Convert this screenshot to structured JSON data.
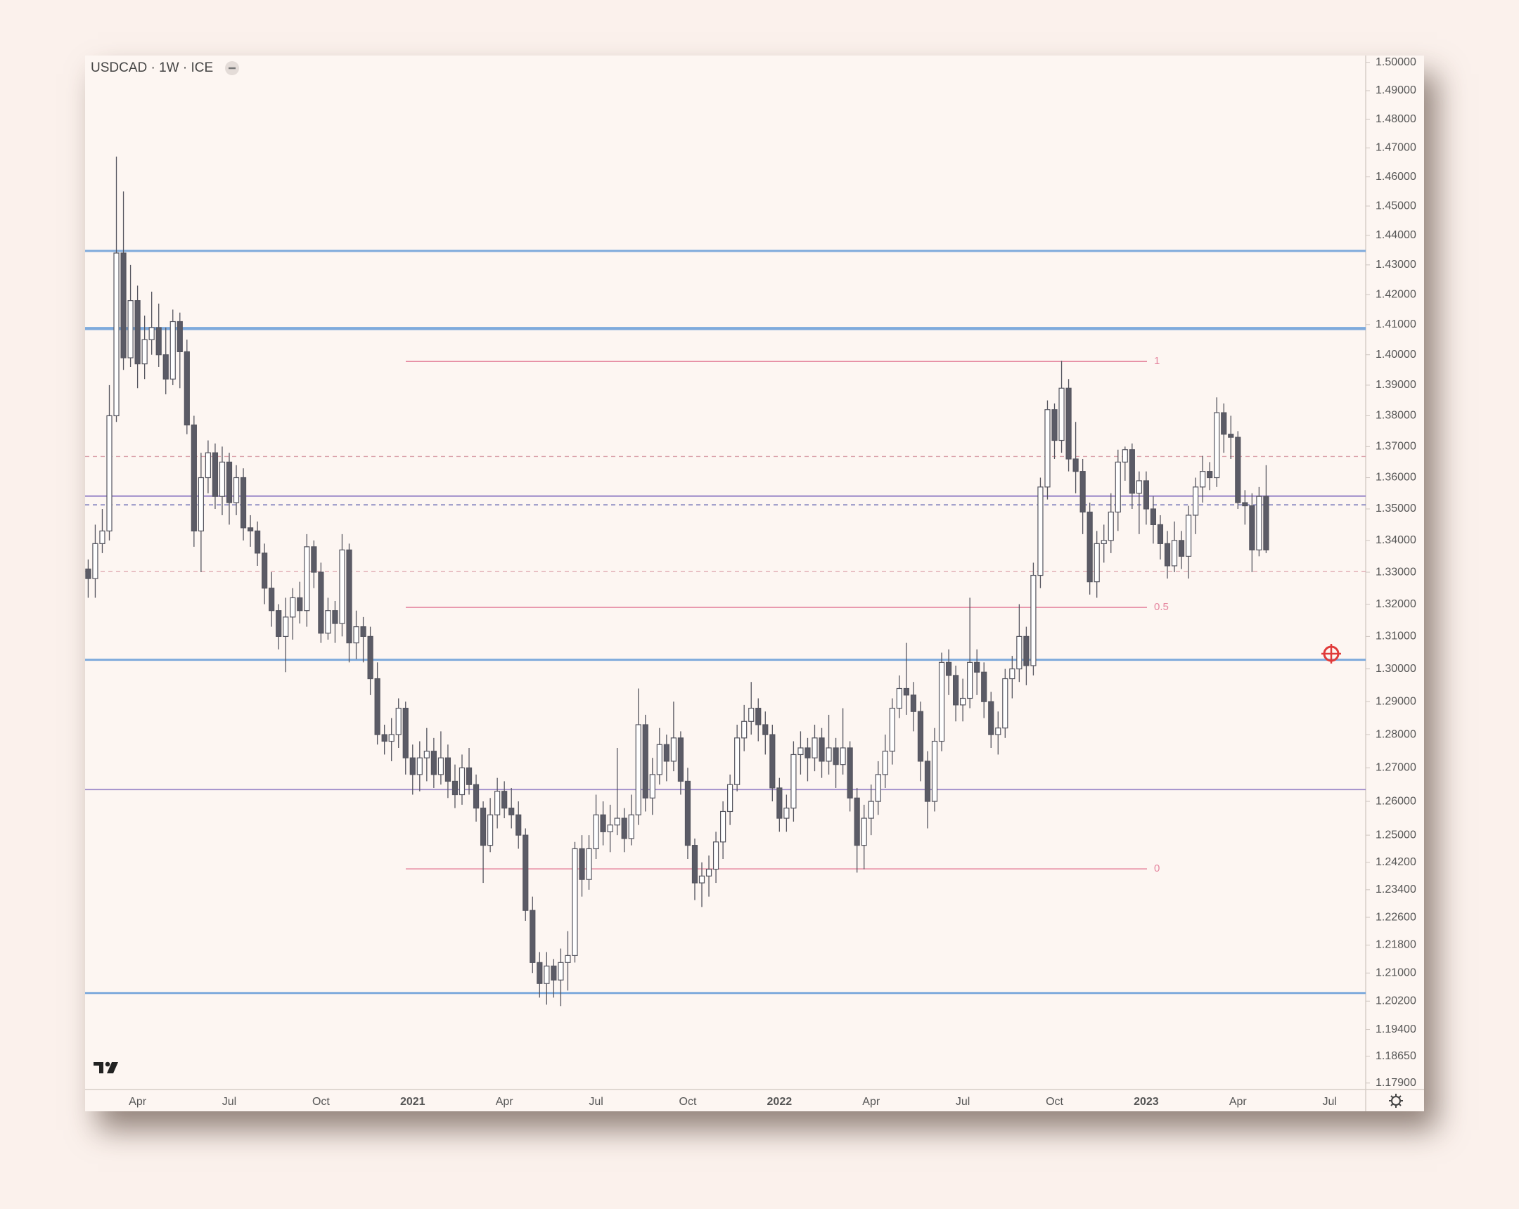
{
  "chart_data": {
    "type": "candlestick",
    "title": "USDCAD · 1W · ICE",
    "log_scale": true,
    "grid": false,
    "ylim": [
      1.1772,
      1.5024
    ],
    "yticks": [
      {
        "value": 1.5,
        "label": "1.50000"
      },
      {
        "value": 1.49,
        "label": "1.49000"
      },
      {
        "value": 1.48,
        "label": "1.48000"
      },
      {
        "value": 1.47,
        "label": "1.47000"
      },
      {
        "value": 1.46,
        "label": "1.46000"
      },
      {
        "value": 1.45,
        "label": "1.45000"
      },
      {
        "value": 1.44,
        "label": "1.44000"
      },
      {
        "value": 1.43,
        "label": "1.43000"
      },
      {
        "value": 1.42,
        "label": "1.42000"
      },
      {
        "value": 1.41,
        "label": "1.41000"
      },
      {
        "value": 1.4,
        "label": "1.40000"
      },
      {
        "value": 1.39,
        "label": "1.39000"
      },
      {
        "value": 1.38,
        "label": "1.38000"
      },
      {
        "value": 1.37,
        "label": "1.37000"
      },
      {
        "value": 1.36,
        "label": "1.36000"
      },
      {
        "value": 1.35,
        "label": "1.35000"
      },
      {
        "value": 1.34,
        "label": "1.34000"
      },
      {
        "value": 1.33,
        "label": "1.33000"
      },
      {
        "value": 1.32,
        "label": "1.32000"
      },
      {
        "value": 1.31,
        "label": "1.31000"
      },
      {
        "value": 1.3,
        "label": "1.30000"
      },
      {
        "value": 1.29,
        "label": "1.29000"
      },
      {
        "value": 1.28,
        "label": "1.28000"
      },
      {
        "value": 1.27,
        "label": "1.27000"
      },
      {
        "value": 1.26,
        "label": "1.26000"
      },
      {
        "value": 1.25,
        "label": "1.25000"
      },
      {
        "value": 1.242,
        "label": "1.24200"
      },
      {
        "value": 1.234,
        "label": "1.23400"
      },
      {
        "value": 1.226,
        "label": "1.22600"
      },
      {
        "value": 1.218,
        "label": "1.21800"
      },
      {
        "value": 1.21,
        "label": "1.21000"
      },
      {
        "value": 1.202,
        "label": "1.20200"
      },
      {
        "value": 1.194,
        "label": "1.19400"
      },
      {
        "value": 1.1865,
        "label": "1.18650"
      },
      {
        "value": 1.179,
        "label": "1.17900"
      }
    ],
    "xticks": [
      "Apr",
      "Jul",
      "Oct",
      "2021",
      "Apr",
      "Jul",
      "Oct",
      "2022",
      "Apr",
      "Jul",
      "Oct",
      "2023",
      "Apr",
      "Jul"
    ],
    "up_color": "#ffffff",
    "down_color": "#5b5b66",
    "wick_color": "#55555f",
    "candles": {
      "open": [
        1.331,
        1.328,
        1.339,
        1.343,
        1.38,
        1.434,
        1.399,
        1.418,
        1.397,
        1.405,
        1.409,
        1.4,
        1.392,
        1.411,
        1.401,
        1.377,
        1.343,
        1.36,
        1.368,
        1.354,
        1.365,
        1.352,
        1.36,
        1.344,
        1.343,
        1.336,
        1.325,
        1.318,
        1.31,
        1.316,
        1.322,
        1.318,
        1.338,
        1.33,
        1.311,
        1.318,
        1.314,
        1.337,
        1.308,
        1.313,
        1.31,
        1.297,
        1.28,
        1.278,
        1.28,
        1.288,
        1.273,
        1.268,
        1.273,
        1.275,
        1.268,
        1.273,
        1.266,
        1.262,
        1.27,
        1.265,
        1.258,
        1.247,
        1.256,
        1.263,
        1.258,
        1.256,
        1.25,
        1.228,
        1.213,
        1.207,
        1.212,
        1.208,
        1.213,
        1.215,
        1.246,
        1.237,
        1.246,
        1.256,
        1.251,
        1.253,
        1.255,
        1.249,
        1.256,
        1.283,
        1.261,
        1.268,
        1.277,
        1.272,
        1.279,
        1.266,
        1.247,
        1.236,
        1.238,
        1.24,
        1.248,
        1.257,
        1.265,
        1.279,
        1.284,
        1.288,
        1.283,
        1.28,
        1.264,
        1.255,
        1.258,
        1.274,
        1.276,
        1.273,
        1.279,
        1.272,
        1.276,
        1.271,
        1.276,
        1.261,
        1.247,
        1.255,
        1.26,
        1.268,
        1.275,
        1.288,
        1.294,
        1.292,
        1.287,
        1.272,
        1.26,
        1.278,
        1.302,
        1.298,
        1.289,
        1.291,
        1.302,
        1.299,
        1.29,
        1.28,
        1.282,
        1.297,
        1.3,
        1.31,
        1.301,
        1.329,
        1.357,
        1.382,
        1.372,
        1.389,
        1.366,
        1.362,
        1.349,
        1.327,
        1.339,
        1.34,
        1.349,
        1.365,
        1.369,
        1.355,
        1.359,
        1.35,
        1.345,
        1.339,
        1.332,
        1.34,
        1.335,
        1.348,
        1.357,
        1.362,
        1.36,
        1.381,
        1.374,
        1.373,
        1.352,
        1.351,
        1.337,
        1.354
      ],
      "high": [
        1.334,
        1.345,
        1.35,
        1.39,
        1.467,
        1.455,
        1.43,
        1.423,
        1.413,
        1.421,
        1.417,
        1.409,
        1.415,
        1.414,
        1.405,
        1.38,
        1.368,
        1.372,
        1.371,
        1.37,
        1.368,
        1.364,
        1.363,
        1.348,
        1.346,
        1.339,
        1.33,
        1.32,
        1.322,
        1.325,
        1.327,
        1.342,
        1.34,
        1.333,
        1.322,
        1.321,
        1.342,
        1.339,
        1.318,
        1.316,
        1.313,
        1.302,
        1.283,
        1.285,
        1.291,
        1.29,
        1.277,
        1.278,
        1.282,
        1.279,
        1.281,
        1.277,
        1.271,
        1.274,
        1.276,
        1.268,
        1.26,
        1.261,
        1.267,
        1.266,
        1.264,
        1.26,
        1.252,
        1.232,
        1.216,
        1.216,
        1.214,
        1.217,
        1.222,
        1.248,
        1.25,
        1.25,
        1.262,
        1.26,
        1.259,
        1.276,
        1.258,
        1.262,
        1.294,
        1.286,
        1.273,
        1.282,
        1.28,
        1.29,
        1.281,
        1.27,
        1.249,
        1.242,
        1.244,
        1.251,
        1.26,
        1.268,
        1.283,
        1.289,
        1.296,
        1.291,
        1.287,
        1.283,
        1.267,
        1.262,
        1.278,
        1.281,
        1.279,
        1.283,
        1.282,
        1.286,
        1.279,
        1.288,
        1.278,
        1.264,
        1.259,
        1.265,
        1.272,
        1.28,
        1.291,
        1.298,
        1.308,
        1.296,
        1.29,
        1.275,
        1.282,
        1.305,
        1.306,
        1.301,
        1.297,
        1.322,
        1.306,
        1.302,
        1.293,
        1.287,
        1.3,
        1.304,
        1.32,
        1.313,
        1.333,
        1.36,
        1.385,
        1.384,
        1.398,
        1.392,
        1.378,
        1.366,
        1.352,
        1.343,
        1.345,
        1.355,
        1.369,
        1.37,
        1.371,
        1.362,
        1.362,
        1.354,
        1.348,
        1.343,
        1.346,
        1.343,
        1.351,
        1.36,
        1.367,
        1.365,
        1.386,
        1.384,
        1.38,
        1.375,
        1.356,
        1.355,
        1.357,
        1.364
      ],
      "low": [
        1.322,
        1.322,
        1.336,
        1.34,
        1.378,
        1.395,
        1.396,
        1.389,
        1.392,
        1.4,
        1.396,
        1.387,
        1.39,
        1.389,
        1.374,
        1.338,
        1.33,
        1.355,
        1.35,
        1.348,
        1.345,
        1.348,
        1.34,
        1.338,
        1.332,
        1.32,
        1.313,
        1.306,
        1.299,
        1.309,
        1.314,
        1.313,
        1.325,
        1.308,
        1.309,
        1.308,
        1.31,
        1.302,
        1.303,
        1.302,
        1.292,
        1.277,
        1.274,
        1.272,
        1.276,
        1.268,
        1.262,
        1.263,
        1.266,
        1.264,
        1.265,
        1.261,
        1.258,
        1.259,
        1.262,
        1.254,
        1.236,
        1.245,
        1.252,
        1.255,
        1.252,
        1.246,
        1.225,
        1.21,
        1.203,
        1.201,
        1.203,
        1.2006,
        1.205,
        1.213,
        1.232,
        1.234,
        1.243,
        1.247,
        1.245,
        1.25,
        1.245,
        1.247,
        1.253,
        1.257,
        1.256,
        1.265,
        1.266,
        1.269,
        1.262,
        1.243,
        1.231,
        1.229,
        1.232,
        1.236,
        1.243,
        1.253,
        1.263,
        1.275,
        1.28,
        1.278,
        1.274,
        1.26,
        1.251,
        1.251,
        1.254,
        1.268,
        1.266,
        1.269,
        1.267,
        1.268,
        1.264,
        1.268,
        1.257,
        1.239,
        1.24,
        1.25,
        1.256,
        1.264,
        1.271,
        1.285,
        1.286,
        1.281,
        1.266,
        1.252,
        1.257,
        1.275,
        1.292,
        1.284,
        1.284,
        1.288,
        1.292,
        1.285,
        1.276,
        1.274,
        1.279,
        1.291,
        1.296,
        1.295,
        1.298,
        1.325,
        1.353,
        1.366,
        1.368,
        1.362,
        1.355,
        1.342,
        1.323,
        1.322,
        1.333,
        1.336,
        1.343,
        1.359,
        1.35,
        1.342,
        1.345,
        1.339,
        1.334,
        1.328,
        1.33,
        1.331,
        1.328,
        1.342,
        1.352,
        1.356,
        1.357,
        1.368,
        1.366,
        1.35,
        1.345,
        1.33,
        1.335,
        1.336
      ],
      "close": [
        1.328,
        1.339,
        1.343,
        1.38,
        1.434,
        1.399,
        1.418,
        1.397,
        1.405,
        1.409,
        1.4,
        1.392,
        1.411,
        1.401,
        1.377,
        1.343,
        1.36,
        1.368,
        1.354,
        1.365,
        1.352,
        1.36,
        1.344,
        1.343,
        1.336,
        1.325,
        1.318,
        1.31,
        1.316,
        1.322,
        1.318,
        1.338,
        1.33,
        1.311,
        1.318,
        1.314,
        1.337,
        1.308,
        1.313,
        1.31,
        1.297,
        1.28,
        1.278,
        1.28,
        1.288,
        1.273,
        1.268,
        1.273,
        1.275,
        1.268,
        1.273,
        1.266,
        1.262,
        1.27,
        1.265,
        1.258,
        1.247,
        1.256,
        1.263,
        1.258,
        1.256,
        1.25,
        1.228,
        1.213,
        1.207,
        1.212,
        1.208,
        1.213,
        1.215,
        1.246,
        1.237,
        1.246,
        1.256,
        1.251,
        1.253,
        1.255,
        1.249,
        1.256,
        1.283,
        1.261,
        1.268,
        1.277,
        1.272,
        1.279,
        1.266,
        1.247,
        1.236,
        1.238,
        1.24,
        1.248,
        1.257,
        1.265,
        1.279,
        1.284,
        1.288,
        1.283,
        1.28,
        1.264,
        1.255,
        1.258,
        1.274,
        1.276,
        1.273,
        1.279,
        1.272,
        1.276,
        1.271,
        1.276,
        1.261,
        1.247,
        1.255,
        1.26,
        1.268,
        1.275,
        1.288,
        1.294,
        1.292,
        1.287,
        1.272,
        1.26,
        1.278,
        1.302,
        1.298,
        1.289,
        1.291,
        1.302,
        1.299,
        1.29,
        1.28,
        1.282,
        1.297,
        1.3,
        1.31,
        1.301,
        1.329,
        1.357,
        1.382,
        1.372,
        1.389,
        1.366,
        1.362,
        1.349,
        1.327,
        1.339,
        1.34,
        1.349,
        1.365,
        1.369,
        1.355,
        1.359,
        1.35,
        1.345,
        1.339,
        1.332,
        1.34,
        1.335,
        1.348,
        1.357,
        1.362,
        1.36,
        1.381,
        1.374,
        1.373,
        1.352,
        1.351,
        1.337,
        1.354,
        1.337
      ]
    },
    "levels": [
      {
        "value": 1.4347,
        "color": "#7eaadc",
        "width": 3,
        "dashed": false
      },
      {
        "value": 1.4087,
        "color": "#7eaadc",
        "width": 4.5,
        "dashed": false
      },
      {
        "value": 1.3028,
        "color": "#7eaadc",
        "width": 3,
        "dashed": false
      },
      {
        "value": 1.2043,
        "color": "#7eaadc",
        "width": 3,
        "dashed": false
      },
      {
        "value": 1.3541,
        "color": "#9a86c8",
        "width": 2,
        "dashed": false
      },
      {
        "value": 1.2635,
        "color": "#9a86c8",
        "width": 1.6,
        "dashed": false
      },
      {
        "value": 1.3513,
        "color": "#6d6db4",
        "width": 1.5,
        "dashed": true
      },
      {
        "value": 1.3668,
        "color": "#dba2aa",
        "width": 1.3,
        "dashed": true
      },
      {
        "value": 1.3302,
        "color": "#dba2aa",
        "width": 1.3,
        "dashed": true
      }
    ],
    "fib_color": "#e5869f",
    "fib_levels": [
      {
        "label": "1",
        "value": 1.3978
      },
      {
        "label": "0.5",
        "value": 1.319
      },
      {
        "label": "0",
        "value": 1.2401
      }
    ]
  }
}
